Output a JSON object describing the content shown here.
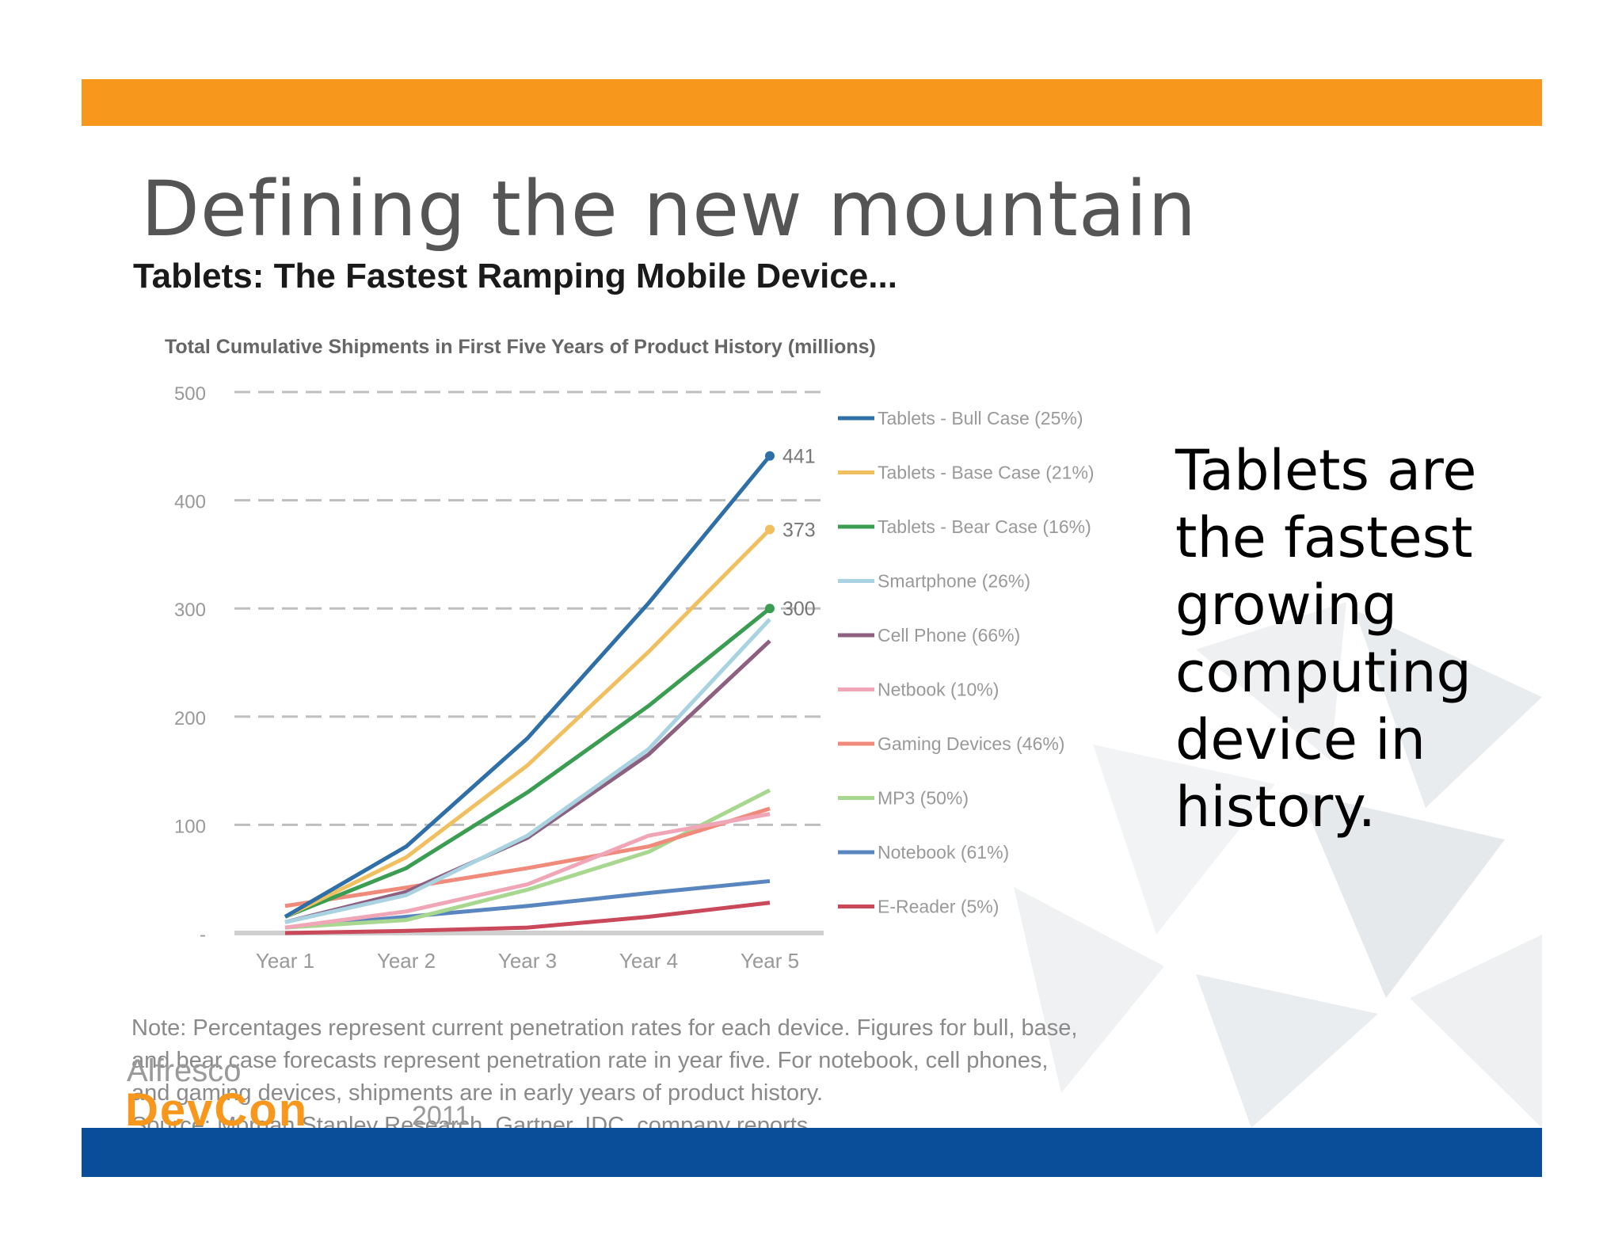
{
  "slide": {
    "title": "Defining the new mountain",
    "side_text": "Tablets are the fastest growing computing device in history.",
    "logo": {
      "brand": "Alfresco",
      "event": "DevCon",
      "year": "2011"
    }
  },
  "colors": {
    "top_bar": "#f7981d",
    "bottom_bar": "#0a4e99"
  },
  "chart_data": {
    "type": "line",
    "heading": "Tablets: The Fastest Ramping Mobile Device...",
    "title": "Total Cumulative Shipments in First Five Years of Product History (millions)",
    "categories": [
      "Year 1",
      "Year 2",
      "Year 3",
      "Year 4",
      "Year 5"
    ],
    "y_ticks": [
      "500",
      "400",
      "300",
      "200",
      "100",
      "-"
    ],
    "ylim": [
      0,
      500
    ],
    "grid": "dashed horizontal",
    "legend_position": "right",
    "series": [
      {
        "name": "Tablets - Bull Case (25%)",
        "color": "#2e6fa7",
        "values": [
          15,
          80,
          180,
          305,
          441
        ],
        "end_label": "441"
      },
      {
        "name": "Tablets - Base Case (21%)",
        "color": "#f0c060",
        "values": [
          15,
          70,
          155,
          260,
          373
        ],
        "end_label": "373"
      },
      {
        "name": "Tablets - Bear Case (16%)",
        "color": "#3a9d52",
        "values": [
          15,
          60,
          130,
          210,
          300
        ],
        "end_label": "300"
      },
      {
        "name": "Smartphone (26%)",
        "color": "#a9d3e0",
        "values": [
          10,
          35,
          90,
          170,
          290
        ],
        "end_label": ""
      },
      {
        "name": "Cell Phone (66%)",
        "color": "#8d6080",
        "values": [
          10,
          38,
          88,
          165,
          270
        ],
        "end_label": ""
      },
      {
        "name": "Netbook (10%)",
        "color": "#f0a6b6",
        "values": [
          5,
          20,
          45,
          90,
          110
        ],
        "end_label": ""
      },
      {
        "name": "Gaming Devices (46%)",
        "color": "#f08a7a",
        "values": [
          25,
          42,
          60,
          80,
          115
        ],
        "end_label": ""
      },
      {
        "name": "MP3 (50%)",
        "color": "#a8d890",
        "values": [
          5,
          12,
          40,
          75,
          132
        ],
        "end_label": ""
      },
      {
        "name": "Notebook (61%)",
        "color": "#5a86bf",
        "values": [
          5,
          15,
          25,
          37,
          48
        ],
        "end_label": ""
      },
      {
        "name": "E-Reader (5%)",
        "color": "#c9485a",
        "values": [
          0,
          2,
          5,
          15,
          28
        ],
        "end_label": ""
      }
    ],
    "note_lines": [
      "Note: Percentages represent current penetration rates for each device. Figures for bull, base,",
      "and bear case forecasts represent penetration rate in year five. For notebook, cell phones,",
      "and gaming devices, shipments are in early years of product history."
    ],
    "source": "Source: Morgan Stanley Research, Gartner, IDC, company reports"
  }
}
